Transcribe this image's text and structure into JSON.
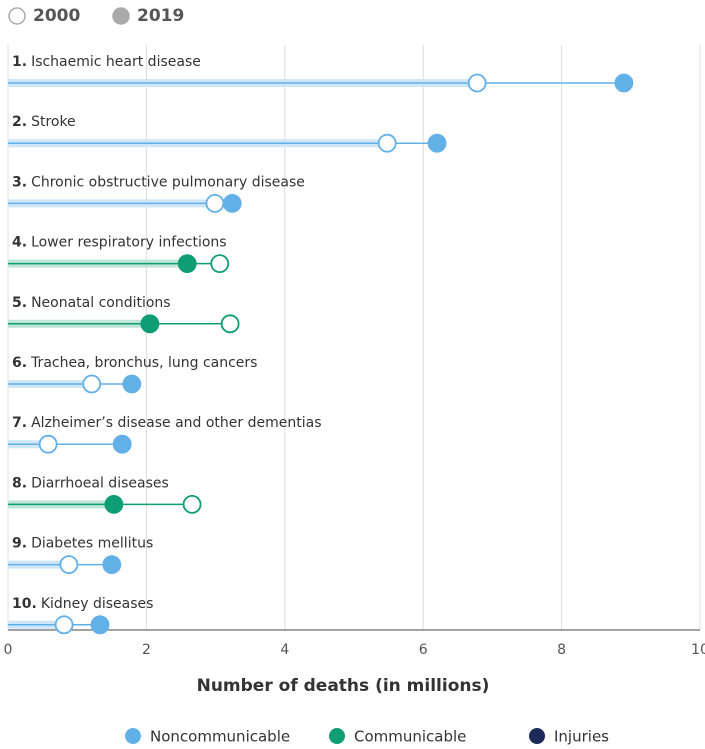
{
  "chart_data": {
    "type": "dumbbell",
    "ranks": [
      "1.",
      "2.",
      "3.",
      "4.",
      "5.",
      "6.",
      "7.",
      "8.",
      "9.",
      "10."
    ],
    "categories": [
      "Ischaemic heart disease",
      "Stroke",
      "Chronic obstructive pulmonary disease",
      "Lower respiratory infections",
      "Neonatal conditions",
      "Trachea, bronchus, lung cancers",
      "Alzheimer’s disease and other dementias",
      "Diarrhoeal diseases",
      "Diabetes mellitus",
      "Kidney diseases"
    ],
    "category_group": [
      0,
      0,
      0,
      1,
      1,
      0,
      0,
      1,
      0,
      0
    ],
    "groups": [
      {
        "name": "Noncommunicable",
        "color": "#62b0e8",
        "light": "#cfe6f8"
      },
      {
        "name": "Communicable",
        "color": "#0f9d74",
        "light": "#bfe5d8"
      },
      {
        "name": "Injuries",
        "color": "#1b2a59",
        "light": "#c4c9d8"
      }
    ],
    "series": [
      {
        "name": "2000",
        "style": "hollow",
        "values": [
          6.78,
          5.48,
          2.99,
          3.06,
          3.21,
          1.21,
          0.58,
          2.66,
          0.88,
          0.81
        ]
      },
      {
        "name": "2019",
        "style": "filled",
        "values": [
          8.9,
          6.2,
          3.24,
          2.59,
          2.05,
          1.79,
          1.65,
          1.53,
          1.5,
          1.33
        ]
      }
    ],
    "xlabel": "Number of deaths (in millions)",
    "xlim": [
      0,
      10
    ],
    "xticks": [
      0,
      2,
      4,
      6,
      8,
      10
    ],
    "grid": true
  }
}
